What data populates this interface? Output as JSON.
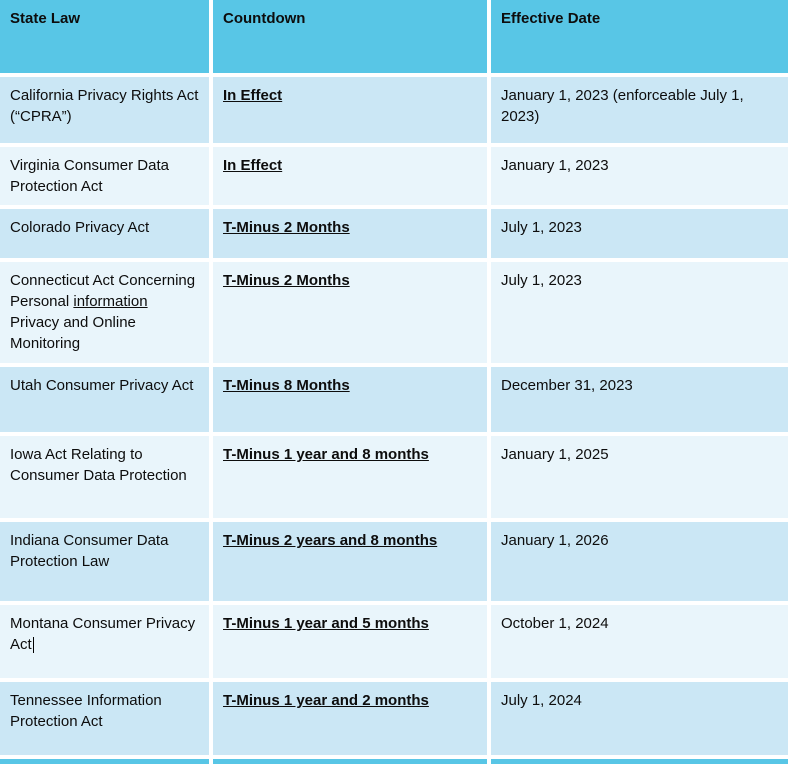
{
  "colors": {
    "header_bg": "#58c6e6",
    "row_dark": "#cbe7f5",
    "row_light": "#e9f5fb",
    "text": "#0d0d0d"
  },
  "table": {
    "headers": [
      "State Law",
      "Countdown",
      "Effective Date"
    ],
    "rows": [
      {
        "state_law": [
          {
            "text": "California Privacy Rights Act (“CPRA”)"
          }
        ],
        "countdown": "In Effect",
        "effective_date": "January 1, 2023 (enforceable July 1, 2023)"
      },
      {
        "state_law": [
          {
            "text": "Virginia Consumer Data Protection Act"
          }
        ],
        "countdown": "In Effect",
        "effective_date": "January 1, 2023"
      },
      {
        "state_law": [
          {
            "text": "Colorado Privacy Act"
          }
        ],
        "countdown": "T-Minus 2 Months",
        "effective_date": "July 1, 2023"
      },
      {
        "state_law": [
          {
            "text": "Connecticut Act Concerning Personal "
          },
          {
            "text": "information",
            "underline": true
          },
          {
            "text": " Privacy and Online Monitoring"
          }
        ],
        "countdown": "T-Minus 2 Months",
        "effective_date": "July 1, 2023"
      },
      {
        "state_law": [
          {
            "text": "Utah Consumer Privacy Act"
          }
        ],
        "countdown": "T-Minus 8 Months",
        "effective_date": "December 31, 2023"
      },
      {
        "state_law": [
          {
            "text": "Iowa Act Relating to Consumer Data Protection"
          }
        ],
        "countdown": "T-Minus 1 year and 8 months",
        "effective_date": "January 1, 2025"
      },
      {
        "state_law": [
          {
            "text": "Indiana Consumer Data Protection Law"
          }
        ],
        "countdown": "T-Minus 2 years and 8 months",
        "effective_date": "January 1, 2026"
      },
      {
        "state_law": [
          {
            "text": "Montana Consumer Privacy Act"
          }
        ],
        "caret": true,
        "countdown": "T-Minus 1 year and 5 months",
        "effective_date": "October 1, 2024"
      },
      {
        "state_law": [
          {
            "text": "Tennessee Information Protection Act"
          }
        ],
        "countdown": "T-Minus 1 year and 2 months",
        "effective_date": "July 1, 2024"
      }
    ]
  }
}
